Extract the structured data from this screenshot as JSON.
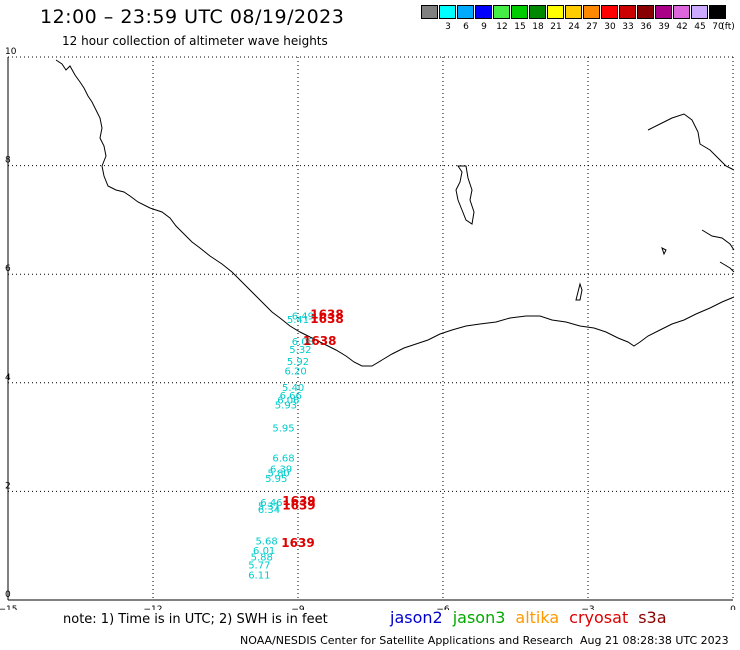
{
  "header": {
    "title": "12:00 – 23:59 UTC 08/19/2023",
    "subtitle": "12 hour collection of altimeter wave heights"
  },
  "color_scale": {
    "unit": "(ft)",
    "bins": [
      {
        "label": "",
        "color": "#808080"
      },
      {
        "label": "3",
        "color": "#00ffff"
      },
      {
        "label": "6",
        "color": "#00aaff"
      },
      {
        "label": "9",
        "color": "#0000ff"
      },
      {
        "label": "12",
        "color": "#44ee44"
      },
      {
        "label": "15",
        "color": "#00cc00"
      },
      {
        "label": "18",
        "color": "#008800"
      },
      {
        "label": "21",
        "color": "#ffff00"
      },
      {
        "label": "24",
        "color": "#ffcc00"
      },
      {
        "label": "27",
        "color": "#ff8800"
      },
      {
        "label": "30",
        "color": "#ff0000"
      },
      {
        "label": "33",
        "color": "#cc0000"
      },
      {
        "label": "36",
        "color": "#880000"
      },
      {
        "label": "39",
        "color": "#aa0088"
      },
      {
        "label": "42",
        "color": "#dd66dd"
      },
      {
        "label": "45",
        "color": "#ccaaff"
      },
      {
        "label": "70",
        "color": "#000000"
      }
    ]
  },
  "axes": {
    "x_ticks": [
      {
        "value": -15,
        "label": "−15"
      },
      {
        "value": -12,
        "label": "−12"
      },
      {
        "value": -9,
        "label": "−9"
      },
      {
        "value": -6,
        "label": "−6"
      },
      {
        "value": -3,
        "label": "−3"
      },
      {
        "value": 0,
        "label": "0"
      }
    ],
    "y_ticks": [
      {
        "value": 0,
        "label": "0"
      },
      {
        "value": 2,
        "label": "2"
      },
      {
        "value": 4,
        "label": "4"
      },
      {
        "value": 6,
        "label": "6"
      },
      {
        "value": 8,
        "label": "8"
      },
      {
        "value": 10,
        "label": "10"
      }
    ],
    "x_range": [
      -15,
      0
    ],
    "y_range": [
      0,
      10
    ]
  },
  "wave_heights": {
    "color": "#00cccc",
    "points": [
      {
        "lon": -8.9,
        "lat": 5.17,
        "label": "6.49"
      },
      {
        "lon": -9.0,
        "lat": 5.1,
        "label": "5.41"
      },
      {
        "lon": -8.9,
        "lat": 4.7,
        "label": "6.08"
      },
      {
        "lon": -8.95,
        "lat": 4.55,
        "label": "5.32"
      },
      {
        "lon": -9.0,
        "lat": 4.33,
        "label": "5.92"
      },
      {
        "lon": -9.05,
        "lat": 4.15,
        "label": "6.20"
      },
      {
        "lon": -9.1,
        "lat": 3.85,
        "label": "5.40"
      },
      {
        "lon": -9.15,
        "lat": 3.7,
        "label": "6.66"
      },
      {
        "lon": -9.2,
        "lat": 3.62,
        "label": "6.06"
      },
      {
        "lon": -9.25,
        "lat": 3.53,
        "label": "5.93"
      },
      {
        "lon": -9.3,
        "lat": 3.1,
        "label": "5.95"
      },
      {
        "lon": -9.3,
        "lat": 2.55,
        "label": "6.68"
      },
      {
        "lon": -9.35,
        "lat": 2.35,
        "label": "6.39"
      },
      {
        "lon": -9.4,
        "lat": 2.27,
        "label": "5.80"
      },
      {
        "lon": -9.45,
        "lat": 2.17,
        "label": "5.95"
      },
      {
        "lon": -9.55,
        "lat": 1.73,
        "label": "6.46"
      },
      {
        "lon": -9.6,
        "lat": 1.67,
        "label": "5.31"
      },
      {
        "lon": -9.6,
        "lat": 1.6,
        "label": "6.34"
      },
      {
        "lon": -9.65,
        "lat": 1.02,
        "label": "5.68"
      },
      {
        "lon": -9.7,
        "lat": 0.85,
        "label": "6.01"
      },
      {
        "lon": -9.75,
        "lat": 0.73,
        "label": "5.88"
      },
      {
        "lon": -9.8,
        "lat": 0.58,
        "label": "5.77"
      },
      {
        "lon": -9.8,
        "lat": 0.4,
        "label": "6.11"
      }
    ]
  },
  "time_labels": {
    "color": "#dd0000",
    "points": [
      {
        "lon": -8.4,
        "lat": 5.18,
        "label": "1638"
      },
      {
        "lon": -8.4,
        "lat": 5.1,
        "label": "1638"
      },
      {
        "lon": -8.55,
        "lat": 4.7,
        "label": "1638"
      },
      {
        "lon": -8.98,
        "lat": 1.75,
        "label": "1639"
      },
      {
        "lon": -8.98,
        "lat": 1.67,
        "label": "1639"
      },
      {
        "lon": -9.0,
        "lat": 0.98,
        "label": "1639"
      }
    ]
  },
  "footer": {
    "note": "note:  1) Time is in UTC;  2) SWH is in feet",
    "satellites": [
      {
        "name": "jason2",
        "color": "#0000cc"
      },
      {
        "name": "jason3",
        "color": "#00aa00"
      },
      {
        "name": "altika",
        "color": "#ff9900"
      },
      {
        "name": "cryosat",
        "color": "#dd0000"
      },
      {
        "name": "s3a",
        "color": "#880000"
      }
    ],
    "credit": "NOAA/NESDIS Center for Satellite Applications and Research",
    "timestamp": "Aug 21 08:28:38 UTC 2023"
  }
}
